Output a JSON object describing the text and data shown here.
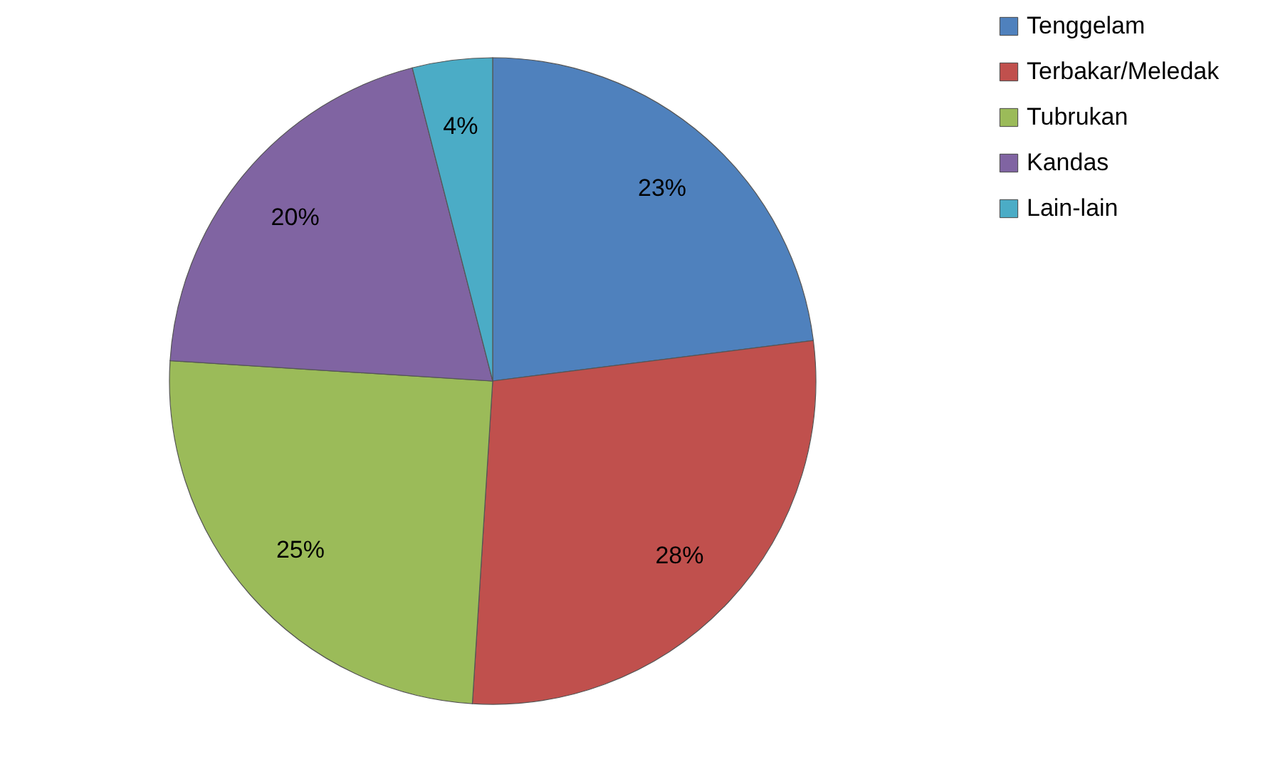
{
  "chart_data": {
    "type": "pie",
    "categories": [
      "Tenggelam",
      "Terbakar/Meledak",
      "Tubrukan",
      "Kandas",
      "Lain-lain"
    ],
    "values": [
      23,
      28,
      25,
      20,
      4
    ],
    "colors": [
      "#4f81bd",
      "#c0504d",
      "#9bbb59",
      "#8064a2",
      "#4bacc6"
    ],
    "value_labels": [
      "23%",
      "28%",
      "25%",
      "20%",
      "4%"
    ],
    "legend": "right"
  }
}
